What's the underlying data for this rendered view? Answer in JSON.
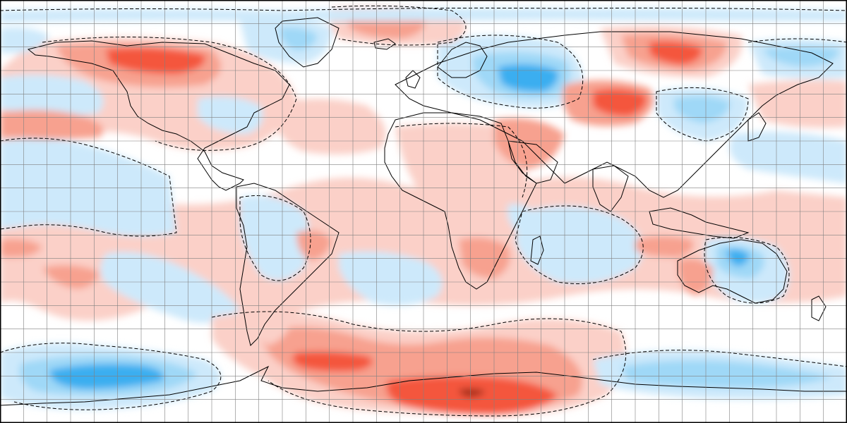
{
  "map": {
    "projection": "equirectangular",
    "grid": true,
    "colors": {
      "strong_warm": "#f4573c",
      "warm": "#f7a18f",
      "weak_warm": "#fbd0c8",
      "neutral": "#ffffff",
      "weak_cool": "#cde9fb",
      "cool": "#9fd8f7",
      "strong_cool": "#3aaef0",
      "extreme_warm": "#9e2a18",
      "grid": "#808080",
      "coastline": "#000000",
      "frame": "#000000"
    }
  }
}
